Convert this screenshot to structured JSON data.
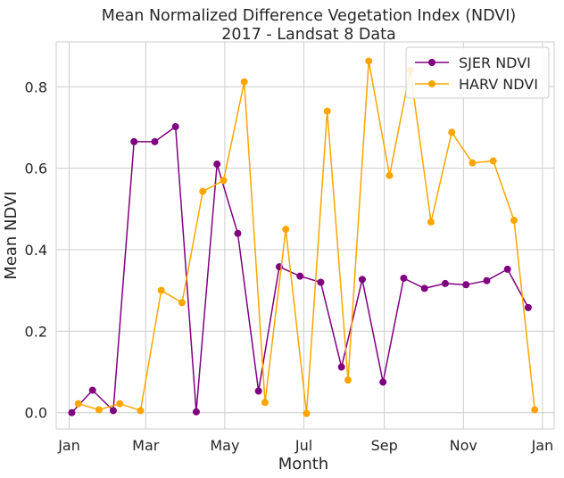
{
  "chart_data": {
    "type": "line",
    "title": "Mean Normalized Difference Vegetation Index (NDVI)",
    "subtitle": "2017 - Landsat 8 Data",
    "xlabel": "Month",
    "ylabel": "Mean NDVI",
    "x_ticks": [
      "Jan",
      "Mar",
      "May",
      "Jul",
      "Sep",
      "Nov",
      "Jan"
    ],
    "x_tick_dates": [
      "2017-01-01",
      "2017-03-01",
      "2017-05-01",
      "2017-07-01",
      "2017-09-01",
      "2017-11-01",
      "2018-01-01"
    ],
    "xlim": [
      "2016-12-22",
      "2018-01-10"
    ],
    "ylim": [
      -0.04,
      0.91
    ],
    "y_ticks": [
      "0.0",
      "0.2",
      "0.4",
      "0.6",
      "0.8"
    ],
    "y_tick_values": [
      0.0,
      0.2,
      0.4,
      0.6,
      0.8
    ],
    "grid": true,
    "legend_position": "top-right",
    "series": [
      {
        "name": "SJER NDVI",
        "color": "#800080",
        "x": [
          "2017-01-03",
          "2017-01-19",
          "2017-02-04",
          "2017-02-20",
          "2017-03-08",
          "2017-03-24",
          "2017-04-09",
          "2017-04-25",
          "2017-05-11",
          "2017-05-27",
          "2017-06-12",
          "2017-06-28",
          "2017-07-14",
          "2017-07-30",
          "2017-08-15",
          "2017-08-31",
          "2017-09-16",
          "2017-10-02",
          "2017-10-18",
          "2017-11-03",
          "2017-11-19",
          "2017-12-05",
          "2017-12-21"
        ],
        "y": [
          0.0,
          0.055,
          0.005,
          0.665,
          0.665,
          0.702,
          0.002,
          0.61,
          0.44,
          0.053,
          0.358,
          0.335,
          0.32,
          0.112,
          0.327,
          0.075,
          0.33,
          0.305,
          0.317,
          0.314,
          0.324,
          0.352,
          0.258
        ]
      },
      {
        "name": "HARV NDVI",
        "color": "#ffa500",
        "x": [
          "2017-01-08",
          "2017-01-24",
          "2017-02-09",
          "2017-02-25",
          "2017-03-13",
          "2017-03-29",
          "2017-04-14",
          "2017-04-30",
          "2017-05-16",
          "2017-06-01",
          "2017-06-17",
          "2017-07-03",
          "2017-07-19",
          "2017-08-04",
          "2017-08-20",
          "2017-09-05",
          "2017-09-21",
          "2017-10-07",
          "2017-10-23",
          "2017-11-08",
          "2017-11-24",
          "2017-12-10",
          "2017-12-26"
        ],
        "y": [
          0.022,
          0.007,
          0.022,
          0.005,
          0.3,
          0.27,
          0.543,
          0.57,
          0.812,
          0.025,
          0.45,
          -0.002,
          0.74,
          0.08,
          0.863,
          0.582,
          0.84,
          0.468,
          0.688,
          0.613,
          0.618,
          0.472,
          0.007
        ]
      }
    ]
  }
}
